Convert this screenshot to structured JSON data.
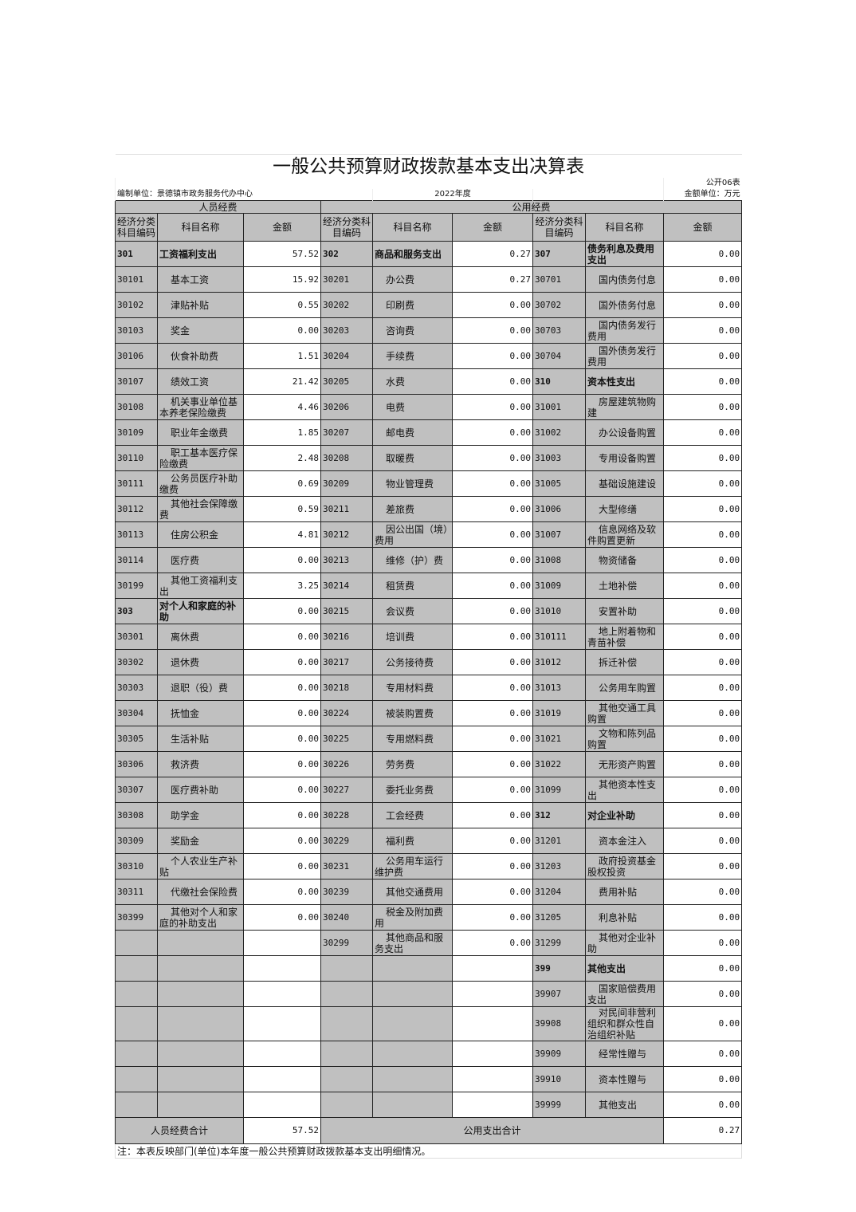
{
  "title": "一般公共预算财政拨款基本支出决算表",
  "table_no": "公开06表",
  "unit_label": "编制单位：景德镇市政务服务代办中心",
  "year": "2022年度",
  "amount_unit": "金额单位：万元",
  "groups": {
    "personnel": "人员经费",
    "public": "公用经费"
  },
  "headers": [
    "经济分类科目编码",
    "科目名称",
    "金额",
    "经济分类科目编码",
    "科目名称",
    "金额",
    "经济分类科目编码",
    "科目名称",
    "金额"
  ],
  "colors": {
    "cell_gray": "#c0c0c0",
    "border": "#222222"
  },
  "rows": [
    {
      "l": [
        "301",
        "工资福利支出",
        "57.52",
        1
      ],
      "m": [
        "302",
        "商品和服务支出",
        "0.27",
        1
      ],
      "r": [
        "307",
        "债务利息及费用支出",
        "0.00",
        1
      ]
    },
    {
      "l": [
        "30101",
        "基本工资",
        "15.92"
      ],
      "m": [
        "30201",
        "办公费",
        "0.27"
      ],
      "r": [
        "30701",
        "国内债务付息",
        "0.00"
      ]
    },
    {
      "l": [
        "30102",
        "津贴补贴",
        "0.55"
      ],
      "m": [
        "30202",
        "印刷费",
        "0.00"
      ],
      "r": [
        "30702",
        "国外债务付息",
        "0.00"
      ]
    },
    {
      "l": [
        "30103",
        "奖金",
        "0.00"
      ],
      "m": [
        "30203",
        "咨询费",
        "0.00"
      ],
      "r": [
        "30703",
        "国内债务发行费用",
        "0.00"
      ]
    },
    {
      "l": [
        "30106",
        "伙食补助费",
        "1.51"
      ],
      "m": [
        "30204",
        "手续费",
        "0.00"
      ],
      "r": [
        "30704",
        "国外债务发行费用",
        "0.00"
      ]
    },
    {
      "l": [
        "30107",
        "绩效工资",
        "21.42"
      ],
      "m": [
        "30205",
        "水费",
        "0.00"
      ],
      "r": [
        "310",
        "资本性支出",
        "0.00",
        1
      ]
    },
    {
      "l": [
        "30108",
        "机关事业单位基本养老保险缴费",
        "4.46"
      ],
      "m": [
        "30206",
        "电费",
        "0.00"
      ],
      "r": [
        "31001",
        "房屋建筑物购建",
        "0.00"
      ]
    },
    {
      "l": [
        "30109",
        "职业年金缴费",
        "1.85"
      ],
      "m": [
        "30207",
        "邮电费",
        "0.00"
      ],
      "r": [
        "31002",
        "办公设备购置",
        "0.00"
      ]
    },
    {
      "l": [
        "30110",
        "职工基本医疗保险缴费",
        "2.48"
      ],
      "m": [
        "30208",
        "取暖费",
        "0.00"
      ],
      "r": [
        "31003",
        "专用设备购置",
        "0.00"
      ]
    },
    {
      "l": [
        "30111",
        "公务员医疗补助缴费",
        "0.69"
      ],
      "m": [
        "30209",
        "物业管理费",
        "0.00"
      ],
      "r": [
        "31005",
        "基础设施建设",
        "0.00"
      ]
    },
    {
      "l": [
        "30112",
        "其他社会保障缴费",
        "0.59"
      ],
      "m": [
        "30211",
        "差旅费",
        "0.00"
      ],
      "r": [
        "31006",
        "大型修缮",
        "0.00"
      ]
    },
    {
      "l": [
        "30113",
        "住房公积金",
        "4.81"
      ],
      "m": [
        "30212",
        "因公出国（境）费用",
        "0.00"
      ],
      "r": [
        "31007",
        "信息网络及软件购置更新",
        "0.00"
      ]
    },
    {
      "l": [
        "30114",
        "医疗费",
        "0.00"
      ],
      "m": [
        "30213",
        "维修（护）费",
        "0.00"
      ],
      "r": [
        "31008",
        "物资储备",
        "0.00"
      ]
    },
    {
      "l": [
        "30199",
        "其他工资福利支出",
        "3.25"
      ],
      "m": [
        "30214",
        "租赁费",
        "0.00"
      ],
      "r": [
        "31009",
        "土地补偿",
        "0.00"
      ]
    },
    {
      "l": [
        "303",
        "对个人和家庭的补助",
        "0.00",
        1
      ],
      "m": [
        "30215",
        "会议费",
        "0.00"
      ],
      "r": [
        "31010",
        "安置补助",
        "0.00"
      ]
    },
    {
      "l": [
        "30301",
        "离休费",
        "0.00"
      ],
      "m": [
        "30216",
        "培训费",
        "0.00"
      ],
      "r": [
        "310111",
        "地上附着物和青苗补偿",
        "0.00"
      ]
    },
    {
      "l": [
        "30302",
        "退休费",
        "0.00"
      ],
      "m": [
        "30217",
        "公务接待费",
        "0.00"
      ],
      "r": [
        "31012",
        "拆迁补偿",
        "0.00"
      ]
    },
    {
      "l": [
        "30303",
        "退职（役）费",
        "0.00"
      ],
      "m": [
        "30218",
        "专用材料费",
        "0.00"
      ],
      "r": [
        "31013",
        "公务用车购置",
        "0.00"
      ]
    },
    {
      "l": [
        "30304",
        "抚恤金",
        "0.00"
      ],
      "m": [
        "30224",
        "被装购置费",
        "0.00"
      ],
      "r": [
        "31019",
        "其他交通工具购置",
        "0.00"
      ]
    },
    {
      "l": [
        "30305",
        "生活补贴",
        "0.00"
      ],
      "m": [
        "30225",
        "专用燃料费",
        "0.00"
      ],
      "r": [
        "31021",
        "文物和陈列品购置",
        "0.00"
      ]
    },
    {
      "l": [
        "30306",
        "救济费",
        "0.00"
      ],
      "m": [
        "30226",
        "劳务费",
        "0.00"
      ],
      "r": [
        "31022",
        "无形资产购置",
        "0.00"
      ]
    },
    {
      "l": [
        "30307",
        "医疗费补助",
        "0.00"
      ],
      "m": [
        "30227",
        "委托业务费",
        "0.00"
      ],
      "r": [
        "31099",
        "其他资本性支出",
        "0.00"
      ]
    },
    {
      "l": [
        "30308",
        "助学金",
        "0.00"
      ],
      "m": [
        "30228",
        "工会经费",
        "0.00"
      ],
      "r": [
        "312",
        "对企业补助",
        "0.00",
        1
      ]
    },
    {
      "l": [
        "30309",
        "奖励金",
        "0.00"
      ],
      "m": [
        "30229",
        "福利费",
        "0.00"
      ],
      "r": [
        "31201",
        "资本金注入",
        "0.00"
      ]
    },
    {
      "l": [
        "30310",
        "个人农业生产补贴",
        "0.00"
      ],
      "m": [
        "30231",
        "公务用车运行维护费",
        "0.00"
      ],
      "r": [
        "31203",
        "政府投资基金股权投资",
        "0.00"
      ]
    },
    {
      "l": [
        "30311",
        "代缴社会保险费",
        "0.00"
      ],
      "m": [
        "30239",
        "其他交通费用",
        "0.00"
      ],
      "r": [
        "31204",
        "费用补贴",
        "0.00"
      ]
    },
    {
      "l": [
        "30399",
        "其他对个人和家庭的补助支出",
        "0.00"
      ],
      "m": [
        "30240",
        "税金及附加费用",
        "0.00"
      ],
      "r": [
        "31205",
        "利息补贴",
        "0.00"
      ]
    },
    {
      "l": [
        "",
        "",
        ""
      ],
      "m": [
        "30299",
        "其他商品和服务支出",
        "0.00"
      ],
      "r": [
        "31299",
        "其他对企业补助",
        "0.00"
      ]
    },
    {
      "l": [
        "",
        "",
        ""
      ],
      "m": [
        "",
        "",
        ""
      ],
      "r": [
        "399",
        "其他支出",
        "0.00",
        1
      ]
    },
    {
      "l": [
        "",
        "",
        ""
      ],
      "m": [
        "",
        "",
        ""
      ],
      "r": [
        "39907",
        "国家赔偿费用支出",
        "0.00"
      ]
    },
    {
      "l": [
        "",
        "",
        ""
      ],
      "m": [
        "",
        "",
        ""
      ],
      "r": [
        "39908",
        "对民间非营利组织和群众性自治组织补贴",
        "0.00"
      ]
    },
    {
      "l": [
        "",
        "",
        ""
      ],
      "m": [
        "",
        "",
        ""
      ],
      "r": [
        "39909",
        "经常性赠与",
        "0.00"
      ]
    },
    {
      "l": [
        "",
        "",
        ""
      ],
      "m": [
        "",
        "",
        ""
      ],
      "r": [
        "39910",
        "资本性赠与",
        "0.00"
      ]
    },
    {
      "l": [
        "",
        "",
        ""
      ],
      "m": [
        "",
        "",
        ""
      ],
      "r": [
        "39999",
        "其他支出",
        "0.00"
      ]
    }
  ],
  "totals": {
    "personnel_label": "人员经费合计",
    "personnel_value": "57.52",
    "public_label": "公用支出合计",
    "public_value": "0.27"
  },
  "note": "注：本表反映部门(单位)本年度一般公共预算财政拨款基本支出明细情况。"
}
